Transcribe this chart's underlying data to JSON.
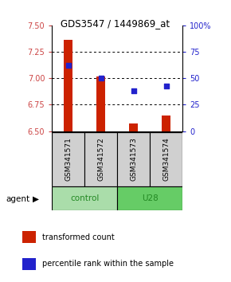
{
  "title": "GDS3547 / 1449869_at",
  "samples": [
    "GSM341571",
    "GSM341572",
    "GSM341573",
    "GSM341574"
  ],
  "bar_values": [
    7.36,
    7.02,
    6.57,
    6.65
  ],
  "bar_bottom": 6.5,
  "percentile_values": [
    62,
    50,
    38,
    43
  ],
  "ylim_left": [
    6.5,
    7.5
  ],
  "ylim_right": [
    0,
    100
  ],
  "yticks_left": [
    6.5,
    6.75,
    7.0,
    7.25,
    7.5
  ],
  "yticks_right": [
    0,
    25,
    50,
    75,
    100
  ],
  "bar_color": "#cc2200",
  "dot_color": "#2222cc",
  "bar_width": 0.28,
  "left_tick_color": "#cc4444",
  "right_tick_color": "#2222cc",
  "grid_ticks": [
    6.75,
    7.0,
    7.25
  ],
  "control_color": "#aaddaa",
  "u28_color": "#66cc66",
  "group_text_color": "#228822",
  "legend_red_label": "transformed count",
  "legend_blue_label": "percentile rank within the sample",
  "sample_box_color": "#d0d0d0"
}
